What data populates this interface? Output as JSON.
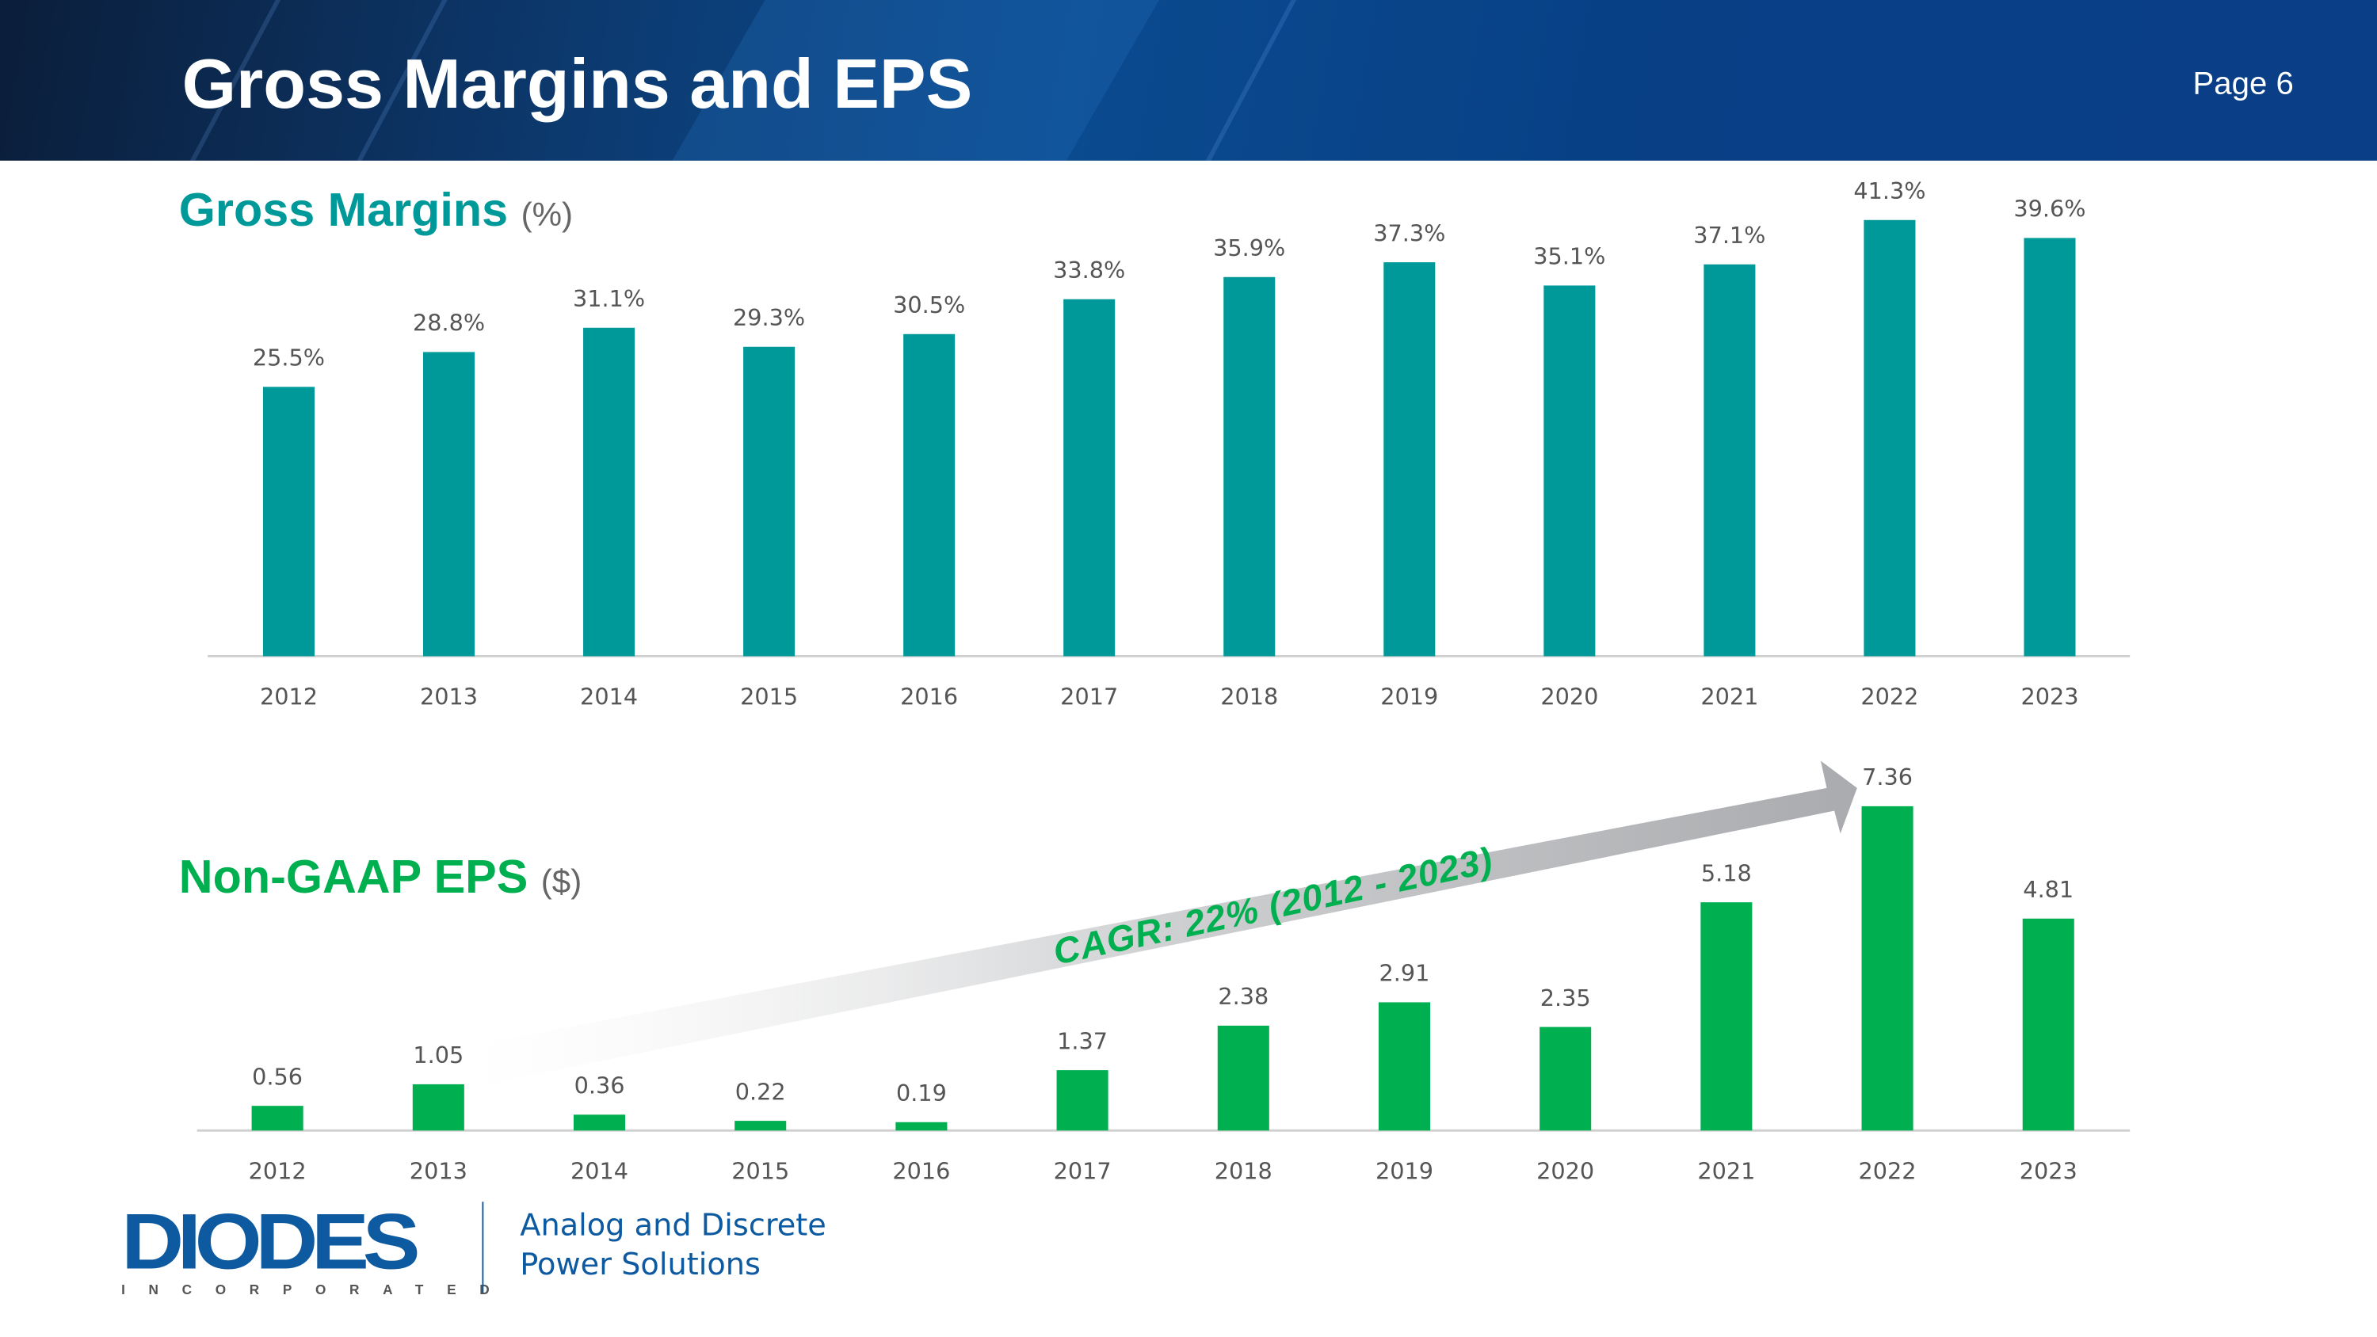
{
  "header": {
    "title": "Gross Margins and EPS",
    "page": "Page 6"
  },
  "colors": {
    "gross_margin": "#009999",
    "eps": "#00b050",
    "brand_blue": "#0d5aa0"
  },
  "gm_section": {
    "title": "Gross Margins",
    "unit": "(%)"
  },
  "eps_section": {
    "title": "Non-GAAP EPS",
    "unit": "($)"
  },
  "annotation": {
    "cagr": "CAGR: 22% (2012 - 2023)"
  },
  "footer": {
    "logo": "DIODES",
    "logo_sub": "INCORPORATED",
    "tagline_line1": "Analog and Discrete",
    "tagline_line2": "Power Solutions"
  },
  "chart_data": [
    {
      "type": "bar",
      "title": "Gross Margins (%)",
      "categories": [
        "2012",
        "2013",
        "2014",
        "2015",
        "2016",
        "2017",
        "2018",
        "2019",
        "2020",
        "2021",
        "2022",
        "2023"
      ],
      "values": [
        25.5,
        28.8,
        31.1,
        29.3,
        30.5,
        33.8,
        35.9,
        37.3,
        35.1,
        37.1,
        41.3,
        39.6
      ],
      "labels": [
        "25.5%",
        "28.8%",
        "31.1%",
        "29.3%",
        "30.5%",
        "33.8%",
        "35.9%",
        "37.3%",
        "35.1%",
        "37.1%",
        "41.3%",
        "39.6%"
      ],
      "ylim": [
        0,
        45
      ],
      "grid": false,
      "color": "#009999"
    },
    {
      "type": "bar",
      "title": "Non-GAAP EPS ($)",
      "categories": [
        "2012",
        "2013",
        "2014",
        "2015",
        "2016",
        "2017",
        "2018",
        "2019",
        "2020",
        "2021",
        "2022",
        "2023"
      ],
      "values": [
        0.56,
        1.05,
        0.36,
        0.22,
        0.19,
        1.37,
        2.38,
        2.91,
        2.35,
        5.18,
        7.36,
        4.81
      ],
      "labels": [
        "0.56",
        "1.05",
        "0.36",
        "0.22",
        "0.19",
        "1.37",
        "2.38",
        "2.91",
        "2.35",
        "5.18",
        "7.36",
        "4.81"
      ],
      "ylim": [
        0,
        8
      ],
      "grid": false,
      "color": "#00b050"
    }
  ]
}
